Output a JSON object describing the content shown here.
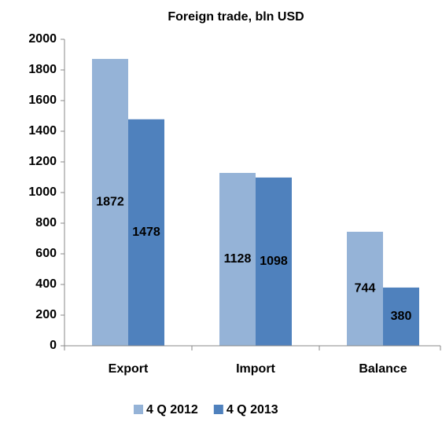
{
  "chart_data": {
    "type": "bar",
    "title": "Foreign trade, bln USD",
    "categories": [
      "Export",
      "Import",
      "Balance"
    ],
    "series": [
      {
        "name": "4 Q 2012",
        "color": "#95b3d7",
        "values": [
          1872,
          1128,
          744
        ]
      },
      {
        "name": "4 Q 2013",
        "color": "#4f81bd",
        "values": [
          1478,
          1098,
          380
        ]
      }
    ],
    "ylim": [
      0,
      2000
    ],
    "yticks": [
      0,
      200,
      400,
      600,
      800,
      1000,
      1200,
      1400,
      1600,
      1800,
      2000
    ],
    "grid": false,
    "legend": "bottom"
  }
}
